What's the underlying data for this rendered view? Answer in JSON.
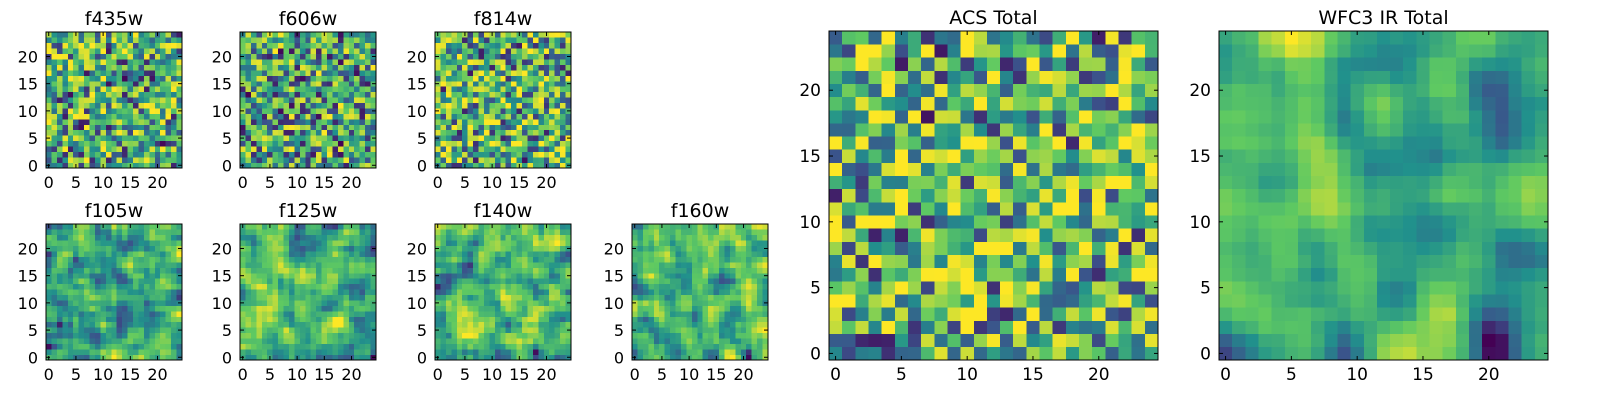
{
  "colormap": {
    "name": "viridis",
    "stops": [
      "#440154",
      "#3b528b",
      "#21918c",
      "#5ec962",
      "#fde725"
    ]
  },
  "chart_data": [
    {
      "type": "heatmap",
      "title": "f435w",
      "grid_size": 25,
      "seed": 11,
      "smoothing": 0,
      "bias": 0.02,
      "xticks": [
        0,
        5,
        10,
        15,
        20
      ],
      "yticks": [
        0,
        5,
        10,
        15,
        20
      ],
      "xlim": [
        -0.5,
        24.5
      ],
      "ylim": [
        -0.5,
        24.5
      ]
    },
    {
      "type": "heatmap",
      "title": "f606w",
      "grid_size": 25,
      "seed": 23,
      "smoothing": 0,
      "bias": 0.0,
      "xticks": [
        0,
        5,
        10,
        15,
        20
      ],
      "yticks": [
        0,
        5,
        10,
        15,
        20
      ],
      "xlim": [
        -0.5,
        24.5
      ],
      "ylim": [
        -0.5,
        24.5
      ]
    },
    {
      "type": "heatmap",
      "title": "f814w",
      "grid_size": 25,
      "seed": 37,
      "smoothing": 0,
      "bias": 0.05,
      "xticks": [
        0,
        5,
        10,
        15,
        20
      ],
      "yticks": [
        0,
        5,
        10,
        15,
        20
      ],
      "xlim": [
        -0.5,
        24.5
      ],
      "ylim": [
        -0.5,
        24.5
      ]
    },
    {
      "type": "heatmap",
      "title": "f105w",
      "grid_size": 25,
      "seed": 41,
      "smoothing": 1,
      "bias": 0.03,
      "xticks": [
        0,
        5,
        10,
        15,
        20
      ],
      "yticks": [
        0,
        5,
        10,
        15,
        20
      ],
      "xlim": [
        -0.5,
        24.5
      ],
      "ylim": [
        -0.5,
        24.5
      ]
    },
    {
      "type": "heatmap",
      "title": "f125w",
      "grid_size": 25,
      "seed": 53,
      "smoothing": 1,
      "bias": 0.02,
      "xticks": [
        0,
        5,
        10,
        15,
        20
      ],
      "yticks": [
        0,
        5,
        10,
        15,
        20
      ],
      "xlim": [
        -0.5,
        24.5
      ],
      "ylim": [
        -0.5,
        24.5
      ]
    },
    {
      "type": "heatmap",
      "title": "f140w",
      "grid_size": 25,
      "seed": 67,
      "smoothing": 1,
      "bias": 0.04,
      "xticks": [
        0,
        5,
        10,
        15,
        20
      ],
      "yticks": [
        0,
        5,
        10,
        15,
        20
      ],
      "xlim": [
        -0.5,
        24.5
      ],
      "ylim": [
        -0.5,
        24.5
      ]
    },
    {
      "type": "heatmap",
      "title": "f160w",
      "grid_size": 25,
      "seed": 79,
      "smoothing": 1,
      "bias": 0.03,
      "xticks": [
        0,
        5,
        10,
        15,
        20
      ],
      "yticks": [
        0,
        5,
        10,
        15,
        20
      ],
      "xlim": [
        -0.5,
        24.5
      ],
      "ylim": [
        -0.5,
        24.5
      ]
    },
    {
      "type": "heatmap",
      "title": "ACS Total",
      "grid_size": 25,
      "seed": 97,
      "smoothing": 0,
      "bias": 0.06,
      "xticks": [
        0,
        5,
        10,
        15,
        20
      ],
      "yticks": [
        0,
        5,
        10,
        15,
        20
      ],
      "xlim": [
        -0.5,
        24.5
      ],
      "ylim": [
        -0.5,
        24.5
      ]
    },
    {
      "type": "heatmap",
      "title": "WFC3 IR Total",
      "grid_size": 25,
      "seed": 131,
      "smoothing": 2,
      "bias": 0.0,
      "xticks": [
        0,
        5,
        10,
        15,
        20
      ],
      "yticks": [
        0,
        5,
        10,
        15,
        20
      ],
      "xlim": [
        -0.5,
        24.5
      ],
      "ylim": [
        -0.5,
        24.5
      ]
    }
  ]
}
